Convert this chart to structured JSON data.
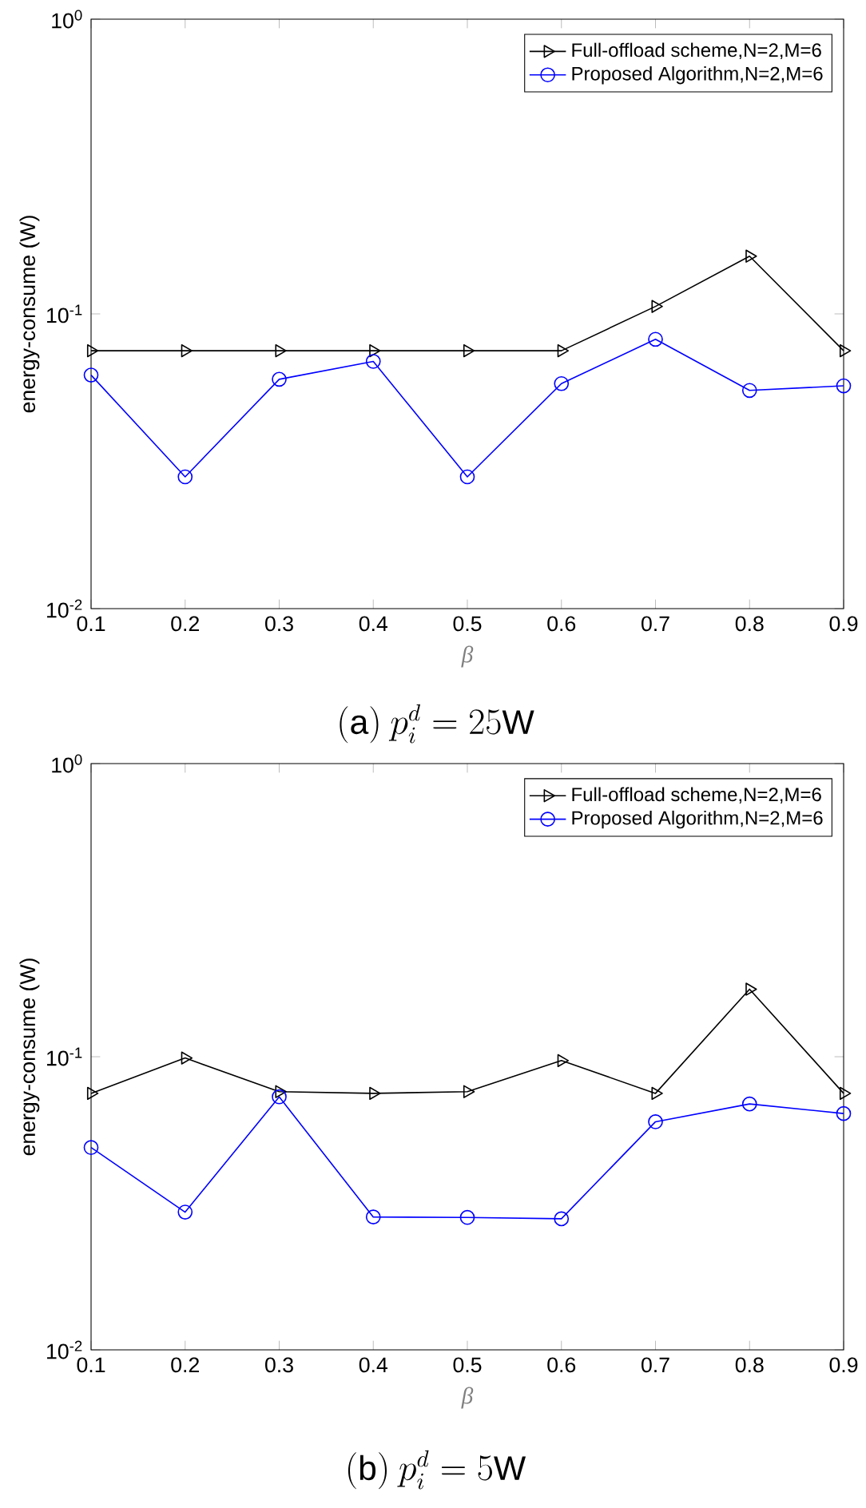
{
  "chart_data": [
    {
      "type": "line",
      "title": "\\mathrm{(a)}\\ p_i^d = 25\\mathrm{W}",
      "xlabel": "β",
      "ylabel": "energy-consume (W)",
      "log": "y",
      "x": [
        0.1,
        0.2,
        0.3,
        0.4,
        0.5,
        0.6,
        0.7,
        0.8,
        0.9
      ],
      "series": [
        {
          "name": "Full-offload scheme,N=2,M=6",
          "color": "#000000",
          "marker": "triangle",
          "values": [
            0.075,
            0.075,
            0.075,
            0.075,
            0.075,
            0.075,
            0.106,
            0.157,
            0.075
          ]
        },
        {
          "name": "Proposed Algorithm,N=2,M=6",
          "color": "#0000ff",
          "marker": "circle",
          "values": [
            0.062,
            0.028,
            0.06,
            0.069,
            0.028,
            0.058,
            0.082,
            0.055,
            0.057
          ]
        }
      ],
      "xlim": [
        0.1,
        0.9
      ],
      "ylim": [
        0.01,
        1
      ],
      "xticks": [
        0.1,
        0.2,
        0.3,
        0.4,
        0.5,
        0.6,
        0.7,
        0.8,
        0.9
      ],
      "yticks": [
        {
          "value": 0.01,
          "label": "10$^{-2}$"
        },
        {
          "value": 0.1,
          "label": "10$^{-1}$"
        },
        {
          "value": 1,
          "label": "10$^{0}$"
        }
      ],
      "legend": "top right",
      "grid": false,
      "line_style": "solid"
    },
    {
      "type": "line",
      "title": "\\mathrm{(b)}\\ p_i^d = 5\\mathrm{W}",
      "xlabel": "β",
      "ylabel": "energy-consume (W)",
      "log": "y",
      "x": [
        0.1,
        0.2,
        0.3,
        0.4,
        0.5,
        0.6,
        0.7,
        0.8,
        0.9
      ],
      "series": [
        {
          "name": "Full-offload scheme,N=2,M=6",
          "color": "#000000",
          "marker": "triangle",
          "values": [
            0.075,
            0.099,
            0.076,
            0.075,
            0.076,
            0.097,
            0.075,
            0.17,
            0.075
          ]
        },
        {
          "name": "Proposed Algorithm,N=2,M=6",
          "color": "#0000ff",
          "marker": "circle",
          "values": [
            0.049,
            0.0295,
            0.073,
            0.0284,
            0.0283,
            0.028,
            0.06,
            0.069,
            0.064
          ]
        }
      ],
      "xlim": [
        0.1,
        0.9
      ],
      "ylim": [
        0.01,
        1
      ],
      "xticks": [
        0.1,
        0.2,
        0.3,
        0.4,
        0.5,
        0.6,
        0.7,
        0.8,
        0.9
      ],
      "yticks": [
        {
          "value": 0.01,
          "label": "10$^{-2}$"
        },
        {
          "value": 0.1,
          "label": "10$^{-1}$"
        },
        {
          "value": 1,
          "label": "10$^{0}$"
        }
      ],
      "legend": "top right",
      "grid": false,
      "line_style": "solid"
    }
  ]
}
